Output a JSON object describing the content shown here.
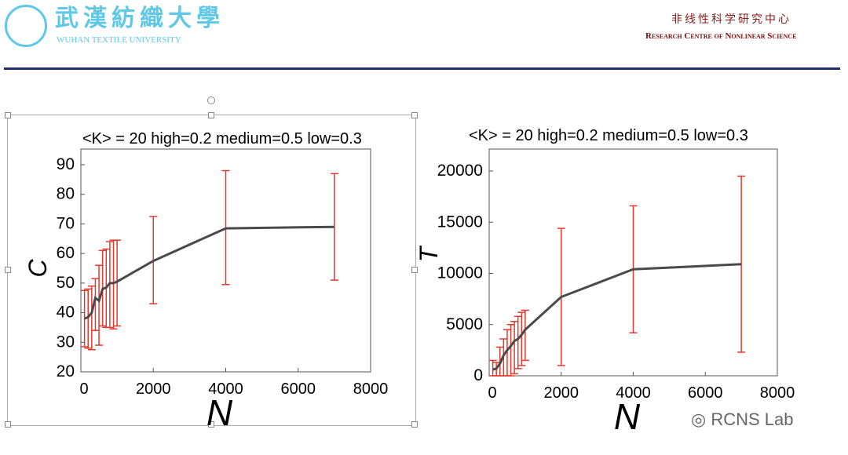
{
  "header": {
    "logo_cn": "武漢紡織大學",
    "logo_en": "WUHAN TEXTILE UNIVERSITY",
    "center_cn": "非线性科学研究中心",
    "center_en": "Research Centre of Nonlinear Science"
  },
  "watermark": "RCNS Lab",
  "colors": {
    "line": "#4a4a4a",
    "errorbar": "#e03a2f",
    "header_rule": "#1f2f6b",
    "logo": "#5ec8e6"
  },
  "chart_data": [
    {
      "type": "line",
      "title": "<K> = 20  high=0.2 medium=0.5 low=0.3",
      "xlabel": "N",
      "ylabel": "C",
      "xlim": [
        0,
        8000
      ],
      "ylim": [
        20,
        90
      ],
      "xticks": [
        0,
        2000,
        4000,
        6000,
        8000
      ],
      "yticks": [
        20,
        30,
        40,
        50,
        60,
        70,
        80,
        90
      ],
      "x": [
        100,
        200,
        300,
        400,
        500,
        600,
        700,
        800,
        900,
        1000,
        2000,
        4000,
        7000
      ],
      "y": [
        38,
        38.5,
        40,
        45,
        44,
        48,
        48.5,
        50,
        50,
        50.5,
        57.5,
        68.5,
        69
      ],
      "err_low": [
        28.5,
        28,
        27.5,
        34,
        29,
        35.5,
        35,
        35,
        34.5,
        35.5,
        43,
        49.5,
        51
      ],
      "err_high": [
        47.5,
        48,
        49,
        51.5,
        56,
        61,
        61.5,
        64,
        64.5,
        64.5,
        72.5,
        88,
        87
      ]
    },
    {
      "type": "line",
      "title": "<K> = 20  high=0.2 medium=0.5 low=0.3",
      "xlabel": "N",
      "ylabel": "T",
      "xlim": [
        0,
        8000
      ],
      "ylim": [
        0,
        20000
      ],
      "xticks": [
        0,
        2000,
        4000,
        6000,
        8000
      ],
      "yticks": [
        0,
        5000,
        10000,
        15000,
        20000
      ],
      "x": [
        100,
        200,
        300,
        400,
        500,
        600,
        700,
        800,
        900,
        1000,
        2000,
        4000,
        7000
      ],
      "y": [
        600,
        700,
        1200,
        2000,
        2500,
        2900,
        3400,
        3600,
        4000,
        4500,
        7700,
        10400,
        10900
      ],
      "err_low": [
        0,
        0,
        0,
        0,
        0,
        0,
        200,
        700,
        1000,
        1500,
        1000,
        4200,
        2300
      ],
      "err_high": [
        1500,
        1300,
        2800,
        3600,
        4500,
        5000,
        5300,
        5800,
        6200,
        6400,
        14400,
        16600,
        19500
      ]
    }
  ]
}
